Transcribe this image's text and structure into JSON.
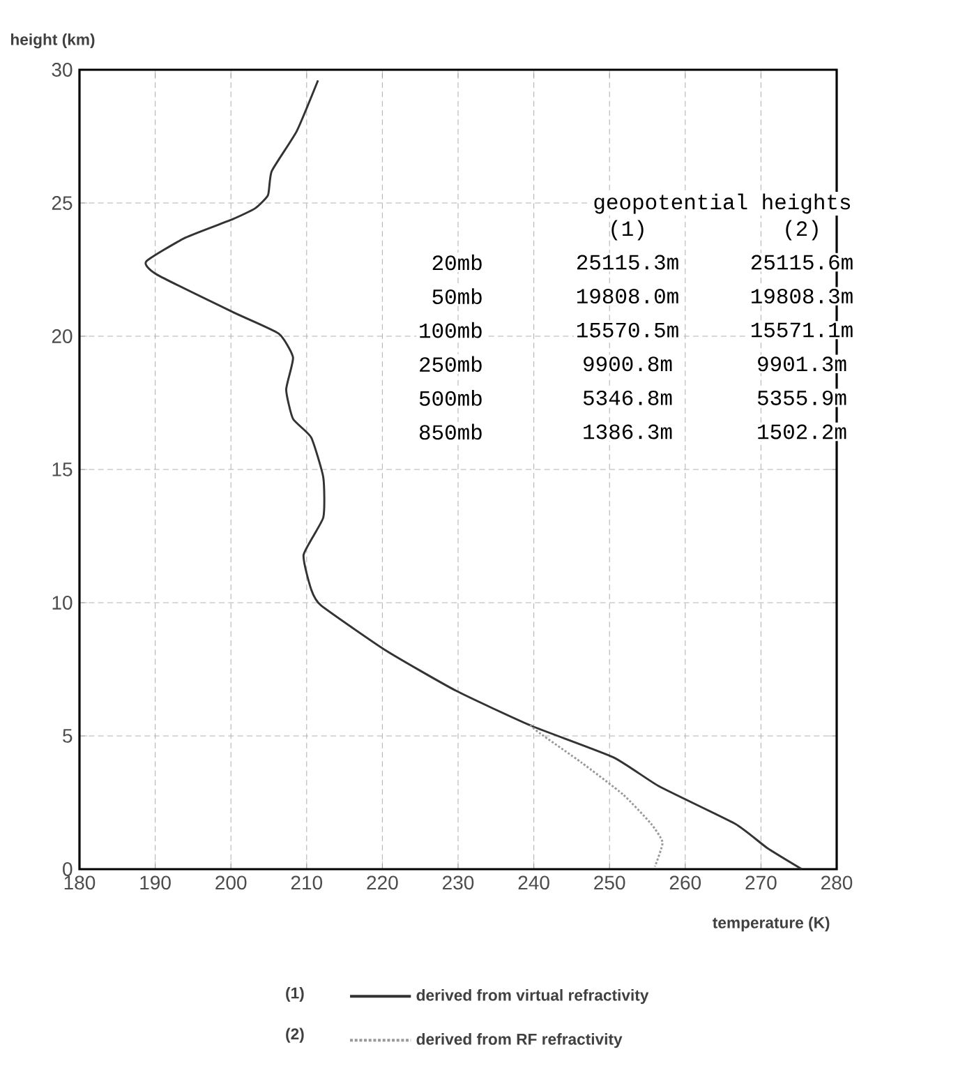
{
  "chart_data": {
    "type": "line",
    "xlabel": "temperature (K)",
    "ylabel": "height (km)",
    "xlim": [
      180,
      280
    ],
    "ylim": [
      0,
      30
    ],
    "xticks": [
      180,
      190,
      200,
      210,
      220,
      230,
      240,
      250,
      260,
      270,
      280
    ],
    "yticks": [
      0,
      5,
      10,
      15,
      20,
      25,
      30
    ],
    "grid": true,
    "legend": "bottom",
    "series": [
      {
        "name": "derived from virtual refractivity",
        "color": "#333333",
        "line_style": "solid",
        "x": [
          211.5,
          208.7,
          205.4,
          204.9,
          203.2,
          200.3,
          194.0,
          188.8,
          190.3,
          200.3,
          206.3,
          208.2,
          207.3,
          208.2,
          210.6,
          212.2,
          212.2,
          209.6,
          210.6,
          211.9,
          220.5,
          229.7,
          239.5,
          250.5,
          256.6,
          266.6,
          270.8,
          275.4
        ],
        "values": [
          29.6,
          27.7,
          26.2,
          25.3,
          24.8,
          24.4,
          23.7,
          22.8,
          22.3,
          20.9,
          20.1,
          19.2,
          18.0,
          16.9,
          16.2,
          14.7,
          13.2,
          11.8,
          10.5,
          9.9,
          8.2,
          6.7,
          5.4,
          4.2,
          3.1,
          1.7,
          0.8,
          0.0
        ]
      },
      {
        "name": "derived from RF refractivity",
        "color": "#999999",
        "line_style": "dotted",
        "x": [
          239.5,
          240.8,
          246.3,
          251.8,
          255.5,
          257.0,
          256.0
        ],
        "values": [
          5.4,
          5.1,
          4.0,
          2.8,
          1.7,
          1.0,
          0.1
        ]
      }
    ],
    "annotations": [
      "geopotential heights",
      "(1)",
      "(2)",
      "20mb",
      "25115.3m",
      "25115.6m",
      "50mb",
      "19808.0m",
      "19808.3m",
      "100mb",
      "15570.5m",
      "15571.1m",
      "250mb",
      "9900.8m",
      "9901.3m",
      "500mb",
      "5346.8m",
      "5355.9m",
      "850mb",
      "1386.3m",
      "1502.2m",
      "(1)",
      "(2)"
    ]
  }
}
